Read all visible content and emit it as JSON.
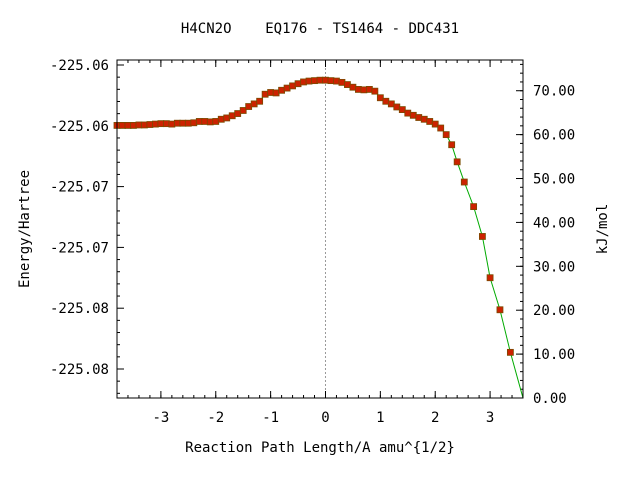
{
  "chart_data": {
    "type": "line",
    "title": "H4CN2O    EQ176 - TS1464 - DDC431",
    "xlabel": "Reaction Path Length/A amu^{1/2}",
    "ylabel": "Energy/Hartree",
    "y2label": "kJ/mol",
    "xlim": [
      -3.8,
      3.6
    ],
    "x_ticks": [
      -3,
      -2,
      -1,
      0,
      1,
      2,
      3
    ],
    "x_tick_labels": [
      "-3",
      "-2",
      "-1",
      "0",
      "1",
      "2",
      "3"
    ],
    "y_tick_labels": [
      "-225.06",
      "-225.06",
      "-225.07",
      "-225.07",
      "-225.08",
      "-225.08"
    ],
    "y2lim": [
      0,
      77
    ],
    "y2_ticks": [
      0,
      10,
      20,
      30,
      40,
      50,
      60,
      70
    ],
    "y2_tick_labels": [
      "0.00",
      "10.00",
      "20.00",
      "30.00",
      "40.00",
      "50.00",
      "60.00",
      "70.00"
    ],
    "ts_x": 0,
    "colors": {
      "line": "#00aa00",
      "marker": "#cc2200",
      "marker_edge": "#7a4a00",
      "ts_line": "#999999"
    },
    "series": [
      {
        "x": [
          -3.8,
          -3.7,
          -3.6,
          -3.5,
          -3.4,
          -3.3,
          -3.2,
          -3.1,
          -3.0,
          -2.9,
          -2.8,
          -2.7,
          -2.6,
          -2.5,
          -2.4,
          -2.3,
          -2.2,
          -2.1,
          -2.0,
          -1.9,
          -1.8,
          -1.7,
          -1.6,
          -1.5,
          -1.4,
          -1.3,
          -1.2,
          -1.1,
          -1.0,
          -0.9,
          -0.8,
          -0.7,
          -0.6,
          -0.5,
          -0.4,
          -0.3,
          -0.2,
          -0.1,
          0.0,
          0.1,
          0.2,
          0.3,
          0.4,
          0.5,
          0.6,
          0.7,
          0.8,
          0.9,
          1.0,
          1.1,
          1.2,
          1.3,
          1.4,
          1.5,
          1.6,
          1.7,
          1.8,
          1.9,
          2.0,
          2.1,
          2.2,
          2.3,
          2.4,
          2.53,
          2.7,
          2.86,
          3.0,
          3.18,
          3.37
        ],
        "y": [
          62.1,
          62.1,
          62.1,
          62.1,
          62.2,
          62.2,
          62.3,
          62.4,
          62.5,
          62.5,
          62.4,
          62.6,
          62.6,
          62.6,
          62.7,
          63.0,
          63.0,
          62.9,
          63.0,
          63.5,
          63.8,
          64.3,
          64.8,
          65.5,
          66.4,
          67.0,
          67.6,
          69.2,
          69.6,
          69.5,
          70.1,
          70.6,
          71.1,
          71.6,
          72.0,
          72.2,
          72.3,
          72.4,
          72.4,
          72.3,
          72.2,
          71.9,
          71.4,
          70.8,
          70.3,
          70.2,
          70.3,
          69.9,
          68.4,
          67.6,
          67.0,
          66.3,
          65.7,
          64.9,
          64.4,
          63.9,
          63.5,
          63.0,
          62.4,
          61.5,
          60.0,
          57.7,
          53.8,
          49.2,
          43.6,
          36.8,
          27.4,
          20.1,
          10.4
        ]
      }
    ]
  }
}
